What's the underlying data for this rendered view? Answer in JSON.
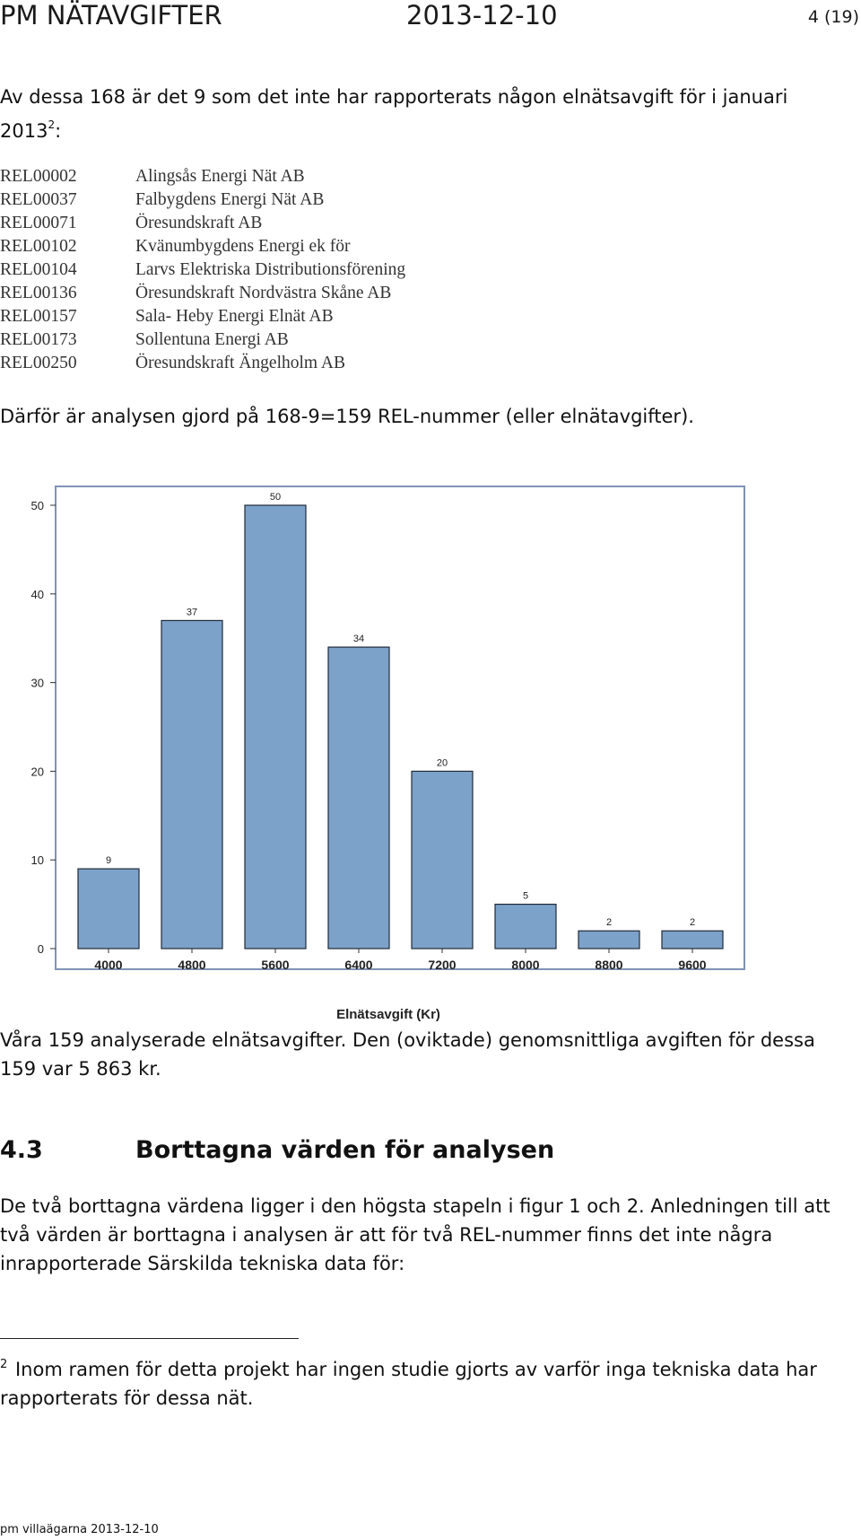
{
  "header": {
    "title": "PM NÄTAVGIFTER",
    "date": "2013-12-10",
    "page": "4 (19)"
  },
  "intro": {
    "text": "Av dessa 168 är det 9 som det inte har rapporterats någon elnätsavgift för i januari 2013",
    "footnote_ref": "2",
    "colon": ":"
  },
  "rel_list": [
    {
      "id": "REL00002",
      "name": "Alingsås Energi Nät AB"
    },
    {
      "id": "REL00037",
      "name": "Falbygdens Energi Nät AB"
    },
    {
      "id": "REL00071",
      "name": "Öresundskraft AB"
    },
    {
      "id": "REL00102",
      "name": "Kvänumbygdens Energi ek för"
    },
    {
      "id": "REL00104",
      "name": "Larvs Elektriska Distributionsförening"
    },
    {
      "id": "REL00136",
      "name": "Öresundskraft Nordvästra Skåne AB"
    },
    {
      "id": "REL00157",
      "name": "Sala- Heby Energi Elnät AB"
    },
    {
      "id": "REL00173",
      "name": "Sollentuna Energi AB"
    },
    {
      "id": "REL00250",
      "name": "Öresundskraft Ängelholm AB"
    }
  ],
  "conclusion": "Därför är analysen gjord på 168-9=159 REL-nummer (eller elnätavgifter).",
  "chart_data": {
    "type": "bar",
    "categories": [
      "4000",
      "4800",
      "5600",
      "6400",
      "7200",
      "8000",
      "8800",
      "9600"
    ],
    "values": [
      9,
      37,
      50,
      34,
      20,
      5,
      2,
      2
    ],
    "data_labels": [
      "9",
      "37",
      "50",
      "34",
      "20",
      "5",
      "2",
      "2"
    ],
    "title": "",
    "xlabel": "Elnätsavgift (Kr)",
    "ylabel": "",
    "ylim": [
      0,
      50
    ],
    "yticks": [
      "0",
      "10",
      "20",
      "30",
      "40",
      "50"
    ],
    "grid": false,
    "legend": "none",
    "bar_color": "#7da2ca",
    "bar_edge_color": "#1f2b38",
    "frame_color": "#7f93b4"
  },
  "caption": "Våra 159 analyserade elnätsavgifter. Den (oviktade) genomsnittliga avgiften för dessa 159 var 5 863 kr.",
  "section": {
    "number": "4.3",
    "title": "Borttagna värden för analysen",
    "body": "De två borttagna värdena ligger i den högsta stapeln i figur 1 och 2. Anledningen till att två värden är borttagna i analysen är att för två REL-nummer finns det inte några inrapporterade Särskilda tekniska data för:"
  },
  "footnote": {
    "number": "2",
    "text": "Inom ramen för detta projekt har ingen studie gjorts av varför inga tekniska data har rapporterats för dessa nät."
  },
  "footer": "pm villaägarna 2013-12-10"
}
